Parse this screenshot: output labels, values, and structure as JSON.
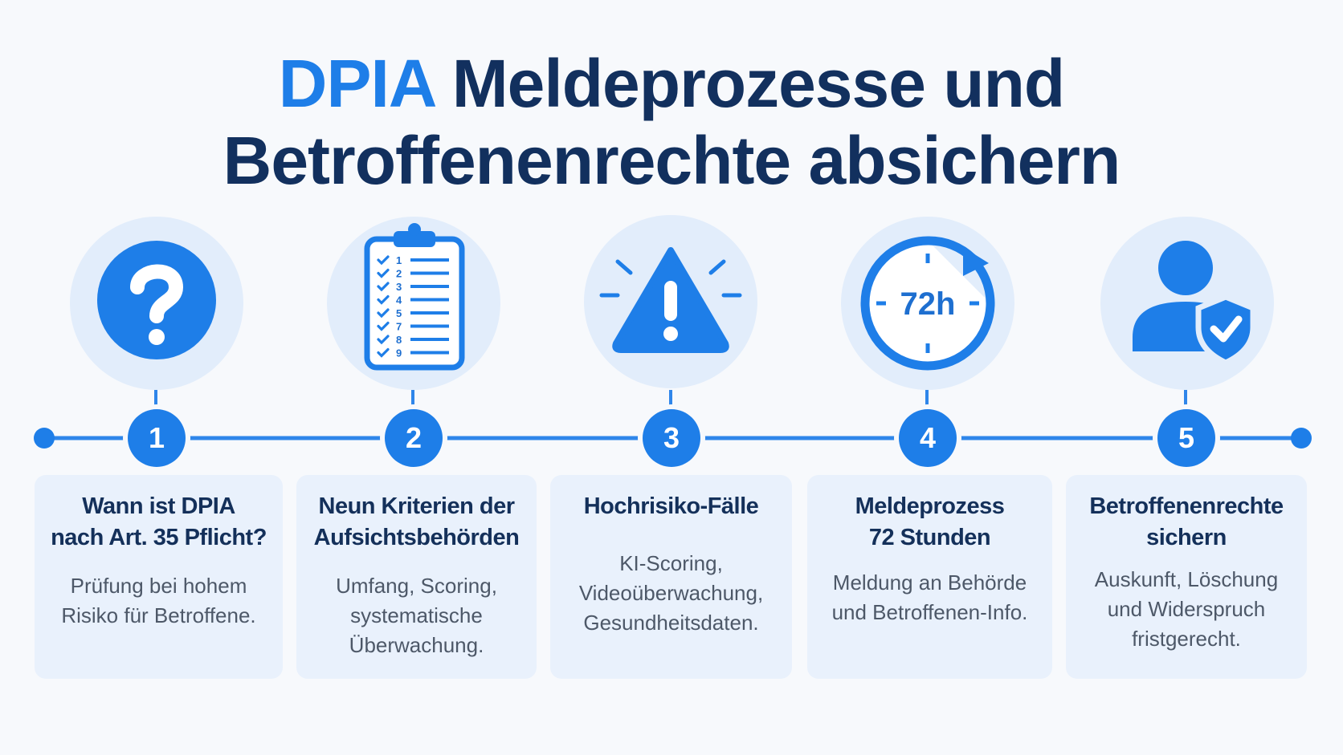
{
  "title": {
    "accent": "DPIA",
    "rest_line1": " Meldeprozesse und",
    "line2": "Betroffenenrechte absichern"
  },
  "colors": {
    "accent": "#1e7ee8",
    "title_dark": "#12305e",
    "icon_bg": "#e2edfb",
    "card_bg": "#e9f1fc"
  },
  "steps": [
    {
      "number": "1",
      "icon": "question-icon",
      "title": "Wann ist DPIA\nnach Art. 35 Pflicht?",
      "text": "Prüfung bei hohem\nRisiko für Betroffene."
    },
    {
      "number": "2",
      "icon": "checklist-clipboard-icon",
      "checklist_numbers": [
        "1",
        "2",
        "3",
        "4",
        "5",
        "7",
        "8",
        "9"
      ],
      "title": "Neun Kriterien der\nAufsichtsbehörden",
      "text": "Umfang, Scoring,\nsystematische\nÜberwachung."
    },
    {
      "number": "3",
      "icon": "warning-triangle-icon",
      "title": "Hochrisiko-Fälle",
      "text": "KI-Scoring,\nVideoüberwachung,\nGesundheitsdaten."
    },
    {
      "number": "4",
      "icon": "clock-72h-icon",
      "clock_label": "72h",
      "title": "Meldeprozess\n72 Stunden",
      "text": "Meldung an Behörde\nund Betroffenen-Info."
    },
    {
      "number": "5",
      "icon": "user-shield-icon",
      "title": "Betroffenenrechte\nsichern",
      "text": "Auskunft, Löschung\nund Widerspruch\nfristgerecht."
    }
  ]
}
